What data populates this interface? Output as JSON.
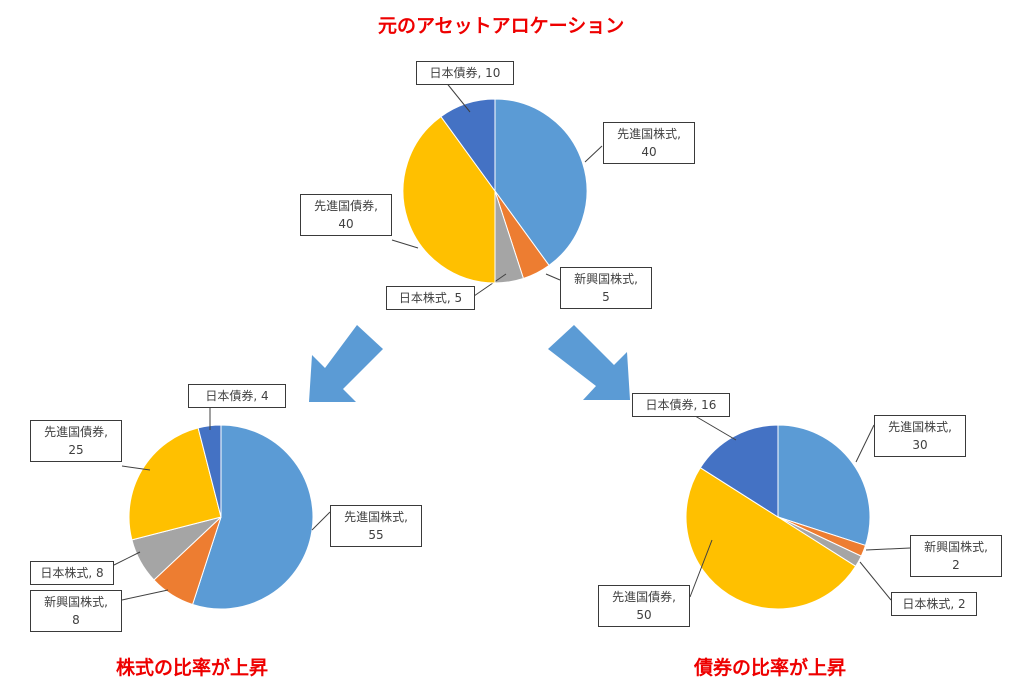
{
  "colors": {
    "先進国株式": "#5b9bd5",
    "新興国株式": "#ed7d31",
    "日本株式": "#a5a5a5",
    "先進国債券": "#ffc000",
    "日本債券": "#4472c4",
    "title": "#ee0000",
    "arrow": "#5b9bd5"
  },
  "chart_data": [
    {
      "type": "pie",
      "title": "元のアセットアロケーション",
      "categories": [
        "先進国株式",
        "新興国株式",
        "日本株式",
        "先進国債券",
        "日本債券"
      ],
      "values": [
        40,
        5,
        5,
        40,
        10
      ]
    },
    {
      "type": "pie",
      "title": "株式の比率が上昇",
      "categories": [
        "先進国株式",
        "新興国株式",
        "日本株式",
        "先進国債券",
        "日本債券"
      ],
      "values": [
        55,
        8,
        8,
        25,
        4
      ]
    },
    {
      "type": "pie",
      "title": "債券の比率が上昇",
      "categories": [
        "先進国株式",
        "新興国株式",
        "日本株式",
        "先進国債券",
        "日本債券"
      ],
      "values": [
        30,
        2,
        2,
        50,
        16
      ]
    }
  ]
}
